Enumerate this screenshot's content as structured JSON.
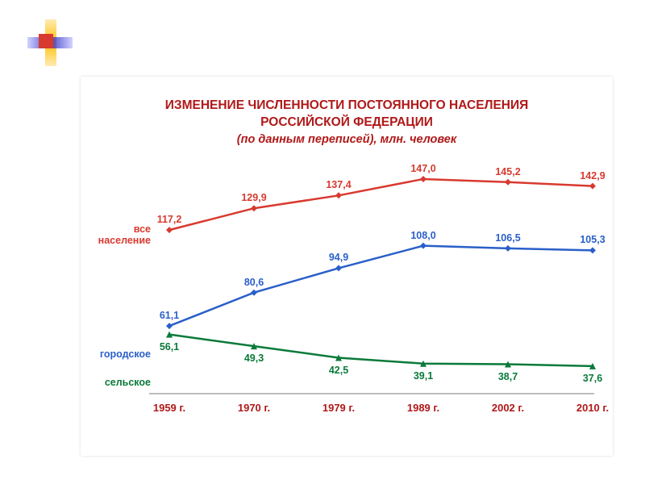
{
  "title_line1": "ИЗМЕНЕНИЕ ЧИСЛЕННОСТИ ПОСТОЯННОГО НАСЕЛЕНИЯ",
  "title_line2": "РОССИЙСКОЙ ФЕДЕРАЦИИ",
  "subtitle": "(по данным переписей), млн. человек",
  "categories": [
    "1959 г.",
    "1970 г.",
    "1979 г.",
    "1989 г.",
    "2002 г.",
    "2010 г."
  ],
  "axis_color": "#b01818",
  "label_fontsize": 12.5,
  "title_color": "#b01818",
  "title_fontsize": 15.5,
  "background_color": "#ffffff",
  "y_range": [
    30,
    155
  ],
  "line_width": 2.5,
  "marker_size": 4,
  "series": [
    {
      "name": "все население",
      "color": "#d83a2f",
      "values": [
        117.2,
        129.9,
        137.4,
        147.0,
        145.2,
        142.9
      ],
      "labels": [
        "117,2",
        "129,9",
        "137,4",
        "147,0",
        "145,2",
        "142,9"
      ],
      "markers": [
        "diamond",
        "diamond",
        "diamond",
        "diamond",
        "diamond",
        "diamond"
      ]
    },
    {
      "name": "городское",
      "color": "#2a5fc9",
      "values": [
        61.1,
        80.6,
        94.9,
        108.0,
        106.5,
        105.3
      ],
      "labels": [
        "61,1",
        "80,6",
        "94,9",
        "108,0",
        "106,5",
        "105,3"
      ],
      "markers": [
        "diamond",
        "diamond",
        "diamond",
        "diamond",
        "diamond",
        "diamond"
      ]
    },
    {
      "name": "сельское",
      "color": "#0a7a3a",
      "values": [
        56.1,
        49.3,
        42.5,
        39.1,
        38.7,
        37.6
      ],
      "labels": [
        "56,1",
        "49,3",
        "42,5",
        "39,1",
        "38,7",
        "37,6"
      ],
      "markers": [
        "triangle",
        "triangle",
        "triangle",
        "triangle",
        "triangle",
        "triangle"
      ]
    }
  ]
}
